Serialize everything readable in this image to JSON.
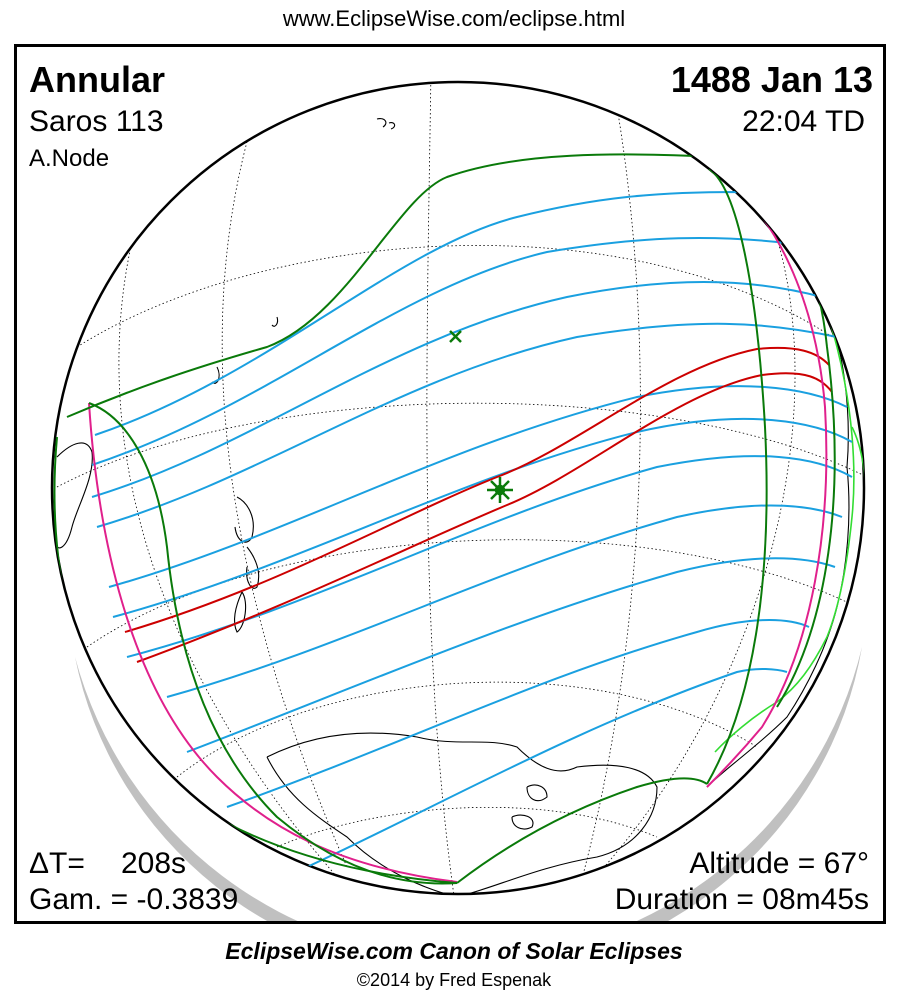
{
  "header": {
    "url": "www.EclipseWise.com/eclipse.html"
  },
  "info": {
    "eclipse_type": "Annular",
    "date": "1488 Jan 13",
    "saros": "Saros 113",
    "time": "22:04 TD",
    "node": "A.Node",
    "delta_t_label": "ΔT=",
    "delta_t_value": "208s",
    "gamma": "Gam. = -0.3839",
    "altitude": "Altitude = 67°",
    "duration": "Duration = 08m45s"
  },
  "footer": {
    "title": "EclipseWise.com Canon of Solar Eclipses",
    "copyright": "©2014 by Fred Espenak"
  },
  "colors": {
    "central_path": "#cc0000",
    "penumbral_lines": "#1aa0e0",
    "penumbra_limits": "#0a7a0a",
    "rise_set": "#e0208c",
    "coastline": "#000000",
    "graticule": "#000000",
    "night_shadow": "#c0c0c0",
    "lit_coast": "#33dd33"
  },
  "map": {
    "greatest_eclipse_symbol": "asterisk-marker",
    "subsolar_symbol": "x-marker"
  }
}
